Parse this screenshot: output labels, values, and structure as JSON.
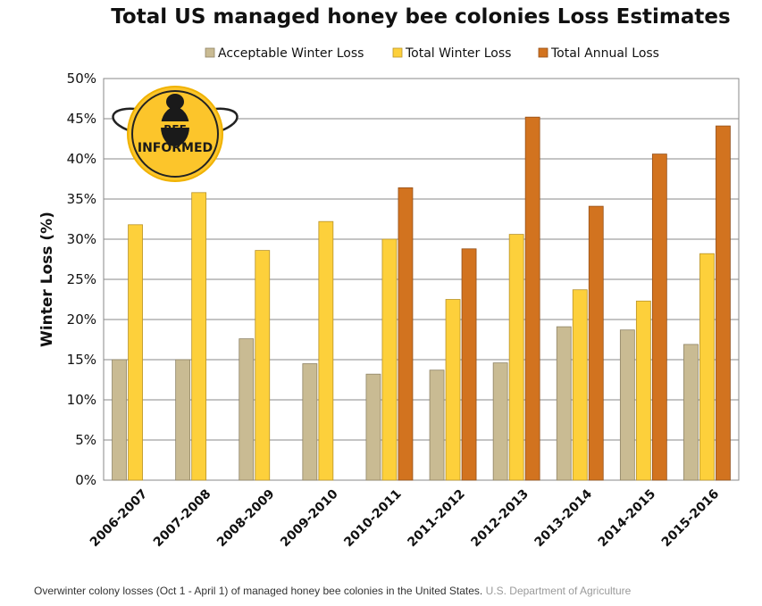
{
  "chart_data": {
    "type": "bar",
    "title": "Total US managed honey bee colonies Loss Estimates",
    "ylabel": "Winter Loss (%)",
    "xlabel": "",
    "ylim": [
      0,
      50
    ],
    "yticks": [
      0,
      5,
      10,
      15,
      20,
      25,
      30,
      35,
      40,
      45,
      50
    ],
    "ytick_labels": [
      "0%",
      "5%",
      "10%",
      "15%",
      "20%",
      "25%",
      "30%",
      "35%",
      "40%",
      "45%",
      "50%"
    ],
    "grid": "horizontal",
    "legend_position": "top",
    "categories": [
      "2006-2007",
      "2007-2008",
      "2008-2009",
      "2009-2010",
      "2010-2011",
      "2011-2012",
      "2012-2013",
      "2013-2014",
      "2014-2015",
      "2015-2016"
    ],
    "series": [
      {
        "name": "Acceptable Winter Loss",
        "color": "#c9bb93",
        "stroke": "#8f8466",
        "values": [
          15.0,
          15.0,
          17.6,
          14.5,
          13.2,
          13.7,
          14.6,
          19.1,
          18.7,
          16.9
        ]
      },
      {
        "name": "Total Winter Loss",
        "color": "#fdd03b",
        "stroke": "#b8932a",
        "values": [
          31.8,
          35.8,
          28.6,
          32.2,
          30.0,
          22.5,
          30.6,
          23.7,
          22.3,
          28.2
        ]
      },
      {
        "name": "Total Annual Loss",
        "color": "#d2731f",
        "stroke": "#94501a",
        "values": [
          null,
          null,
          null,
          null,
          36.4,
          28.8,
          45.2,
          34.1,
          40.6,
          44.1
        ]
      }
    ]
  },
  "logo": {
    "text_top": "BEE",
    "text_bottom": "INFORMED",
    "color": "#fcc52b"
  },
  "caption": {
    "text": "Overwinter colony losses (Oct 1 - April 1) of managed honey bee colonies in the United States.",
    "source": "U.S. Department of Agriculture"
  }
}
